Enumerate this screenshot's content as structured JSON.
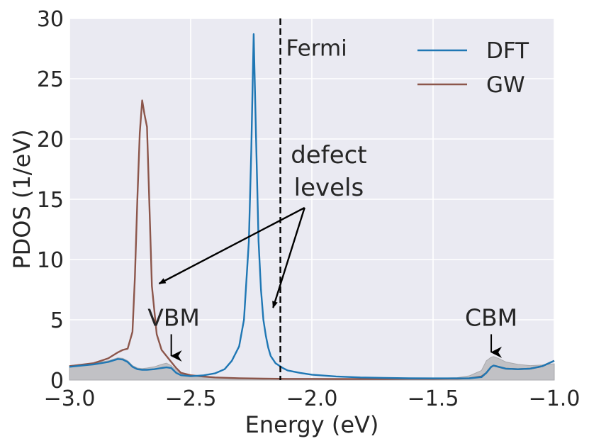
{
  "chart_data": {
    "type": "line",
    "title": "",
    "xlabel": "Energy (eV)",
    "ylabel": "PDOS (1/eV)",
    "xlim": [
      -3.0,
      -1.0
    ],
    "ylim": [
      0,
      30
    ],
    "xticks": [
      -3.0,
      -2.5,
      -2.0,
      -1.5,
      -1.0
    ],
    "xtick_labels": [
      "−3.0",
      "−2.5",
      "−2.0",
      "−1.5",
      "−1.0"
    ],
    "yticks": [
      0,
      5,
      10,
      15,
      20,
      25,
      30
    ],
    "ytick_labels": [
      "0",
      "5",
      "10",
      "15",
      "20",
      "25",
      "30"
    ],
    "grid": true,
    "legend_position": "top-right",
    "colors": {
      "DFT": "#1f77b4",
      "GW": "#8c564b",
      "fill": "#b3b3b6",
      "plot_bg": "#eaeaf2"
    },
    "series": [
      {
        "name": "DFT",
        "x": [
          -3.0,
          -2.9,
          -2.84,
          -2.8,
          -2.78,
          -2.76,
          -2.74,
          -2.72,
          -2.7,
          -2.68,
          -2.65,
          -2.62,
          -2.6,
          -2.58,
          -2.56,
          -2.54,
          -2.5,
          -2.45,
          -2.4,
          -2.36,
          -2.33,
          -2.3,
          -2.28,
          -2.26,
          -2.25,
          -2.24,
          -2.23,
          -2.22,
          -2.21,
          -2.2,
          -2.19,
          -2.18,
          -2.17,
          -2.15,
          -2.12,
          -2.1,
          -2.05,
          -2.0,
          -1.9,
          -1.8,
          -1.7,
          -1.6,
          -1.5,
          -1.4,
          -1.35,
          -1.3,
          -1.28,
          -1.26,
          -1.25,
          -1.23,
          -1.2,
          -1.15,
          -1.1,
          -1.05,
          -1.0
        ],
        "y": [
          1.1,
          1.3,
          1.5,
          1.75,
          1.7,
          1.5,
          1.1,
          0.9,
          0.85,
          0.85,
          0.9,
          1.0,
          1.05,
          1.0,
          0.6,
          0.4,
          0.32,
          0.38,
          0.55,
          0.9,
          1.6,
          2.8,
          5.0,
          11.5,
          19.0,
          28.7,
          20.0,
          11.5,
          7.5,
          5.0,
          3.7,
          2.7,
          2.0,
          1.4,
          1.0,
          0.8,
          0.6,
          0.45,
          0.3,
          0.22,
          0.18,
          0.15,
          0.14,
          0.14,
          0.15,
          0.25,
          0.6,
          1.1,
          1.2,
          1.1,
          0.95,
          0.9,
          0.95,
          1.15,
          1.6
        ]
      },
      {
        "name": "GW",
        "x": [
          -3.0,
          -2.9,
          -2.84,
          -2.8,
          -2.78,
          -2.76,
          -2.74,
          -2.73,
          -2.72,
          -2.71,
          -2.7,
          -2.69,
          -2.68,
          -2.66,
          -2.64,
          -2.62,
          -2.6,
          -2.58,
          -2.56,
          -2.54,
          -2.5,
          -2.45,
          -2.4,
          -2.3,
          -2.2,
          -2.1,
          -2.0,
          -1.9,
          -1.8,
          -1.7,
          -1.6,
          -1.5,
          -1.4,
          -1.35,
          -1.3,
          -1.28,
          -1.26,
          -1.25,
          -1.23,
          -1.2,
          -1.15,
          -1.1,
          -1.05,
          -1.0
        ],
        "y": [
          1.15,
          1.4,
          1.8,
          2.3,
          2.5,
          2.6,
          4.0,
          8.5,
          15.0,
          20.5,
          23.2,
          22.0,
          21.0,
          7.8,
          3.8,
          2.5,
          2.0,
          1.5,
          1.0,
          0.6,
          0.4,
          0.3,
          0.22,
          0.15,
          0.12,
          0.1,
          0.1,
          0.09,
          0.09,
          0.09,
          0.1,
          0.1,
          0.12,
          0.14,
          0.3,
          0.6,
          1.1,
          1.2,
          1.1,
          0.95,
          0.9,
          0.95,
          1.15,
          1.6
        ]
      }
    ],
    "fill_area": {
      "x": [
        -3.0,
        -2.9,
        -2.84,
        -2.8,
        -2.78,
        -2.76,
        -2.74,
        -2.72,
        -2.7,
        -2.68,
        -2.65,
        -2.62,
        -2.6,
        -2.58,
        -2.56,
        -2.54,
        -2.5,
        -2.45,
        -2.4,
        -2.3,
        -2.2,
        -2.1,
        -2.0,
        -1.8,
        -1.6,
        -1.5,
        -1.4,
        -1.35,
        -1.3,
        -1.28,
        -1.26,
        -1.25,
        -1.23,
        -1.2,
        -1.15,
        -1.1,
        -1.05,
        -1.0
      ],
      "y": [
        1.2,
        1.4,
        1.6,
        1.85,
        1.8,
        1.6,
        1.2,
        1.0,
        0.95,
        1.0,
        1.1,
        1.3,
        1.4,
        1.2,
        0.8,
        0.5,
        0.35,
        0.25,
        0.2,
        0.15,
        0.12,
        0.1,
        0.1,
        0.1,
        0.12,
        0.15,
        0.2,
        0.35,
        0.8,
        1.6,
        1.9,
        1.95,
        1.8,
        1.5,
        1.3,
        1.2,
        1.25,
        1.35
      ]
    },
    "vline": {
      "x": -2.13,
      "label": "Fermi"
    },
    "annotations": {
      "defect_levels": {
        "line1": "defect",
        "line2": "levels",
        "text_x": -1.93,
        "text_y1": 18.0,
        "text_y2": 15.3,
        "arrow_origin": [
          -2.03,
          14.3
        ],
        "arrow_targets": [
          [
            -2.63,
            8.0
          ],
          [
            -2.16,
            6.0
          ]
        ]
      },
      "vbm": {
        "label": "VBM",
        "text_x": -2.57,
        "text_y": 4.5,
        "arrow_from": [
          -2.58,
          3.8
        ],
        "arrow_to": [
          -2.58,
          2.0
        ]
      },
      "cbm": {
        "label": "CBM",
        "text_x": -1.26,
        "text_y": 4.5,
        "arrow_from": [
          -1.26,
          3.8
        ],
        "arrow_to": [
          -1.26,
          2.3
        ]
      }
    }
  }
}
